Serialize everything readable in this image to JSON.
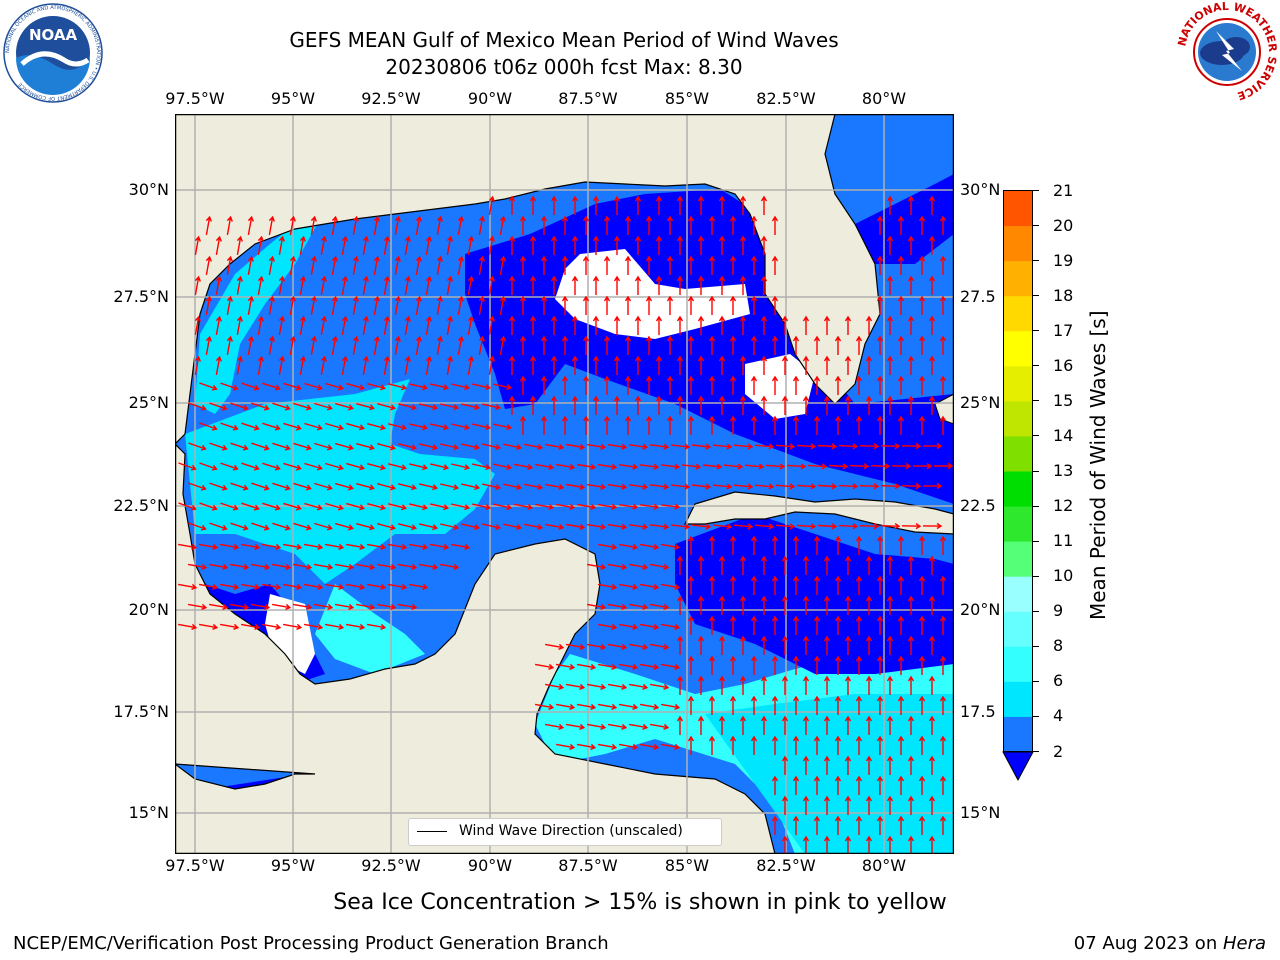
{
  "title": {
    "line1": "GEFS MEAN Gulf of Mexico Mean Period of Wind Waves",
    "line2": "20230806 t06z 000h fcst   Max: 8.30"
  },
  "map": {
    "lon_ticks": [
      "97.5°W",
      "95°W",
      "92.5°W",
      "90°W",
      "87.5°W",
      "85°W",
      "82.5°W",
      "80°W"
    ],
    "lat_ticks_left": [
      "30°N",
      "27.5°N",
      "25°N",
      "22.5°N",
      "20°N",
      "17.5°N",
      "15°N"
    ],
    "lat_ticks_right": [
      "30°N",
      "27.5",
      "25°N",
      "22.5",
      "20°N",
      "17.5",
      "15°N"
    ],
    "legend_label": "Wind Wave Direction (unscaled)",
    "land_color": "#eeecdc",
    "arrow_color": "#ff0000"
  },
  "colorbar": {
    "label": "Mean Period of Wind Waves [s]",
    "ticks": [
      "2",
      "4",
      "6",
      "8",
      "9",
      "10",
      "11",
      "12",
      "13",
      "14",
      "15",
      "16",
      "17",
      "18",
      "19",
      "20",
      "21"
    ],
    "colors": [
      "#1978ff",
      "#00e6ff",
      "#33ffff",
      "#66ffff",
      "#99ffff",
      "#55ff77",
      "#2ee82e",
      "#00dd00",
      "#7fe000",
      "#bfe600",
      "#e6ee00",
      "#ffff00",
      "#ffd900",
      "#ffb000",
      "#ff8800",
      "#ff5500",
      "#ff2a00",
      "#ff0000"
    ],
    "extend_color": "#0000ff"
  },
  "note": "Sea Ice Concentration > 15% is shown in pink to yellow",
  "footer": {
    "left": "NCEP/EMC/Verification Post Processing Product Generation Branch",
    "date": "07 Aug 2023 on ",
    "machine": "Hera"
  },
  "logos": {
    "noaa": "NOAA",
    "noaa_ring": "NATIONAL OCEANIC AND ATMOSPHERIC ADMINISTRATION • U.S. DEPARTMENT OF COMMERCE",
    "nws_ring": "NATIONAL WEATHER SERVICE"
  }
}
